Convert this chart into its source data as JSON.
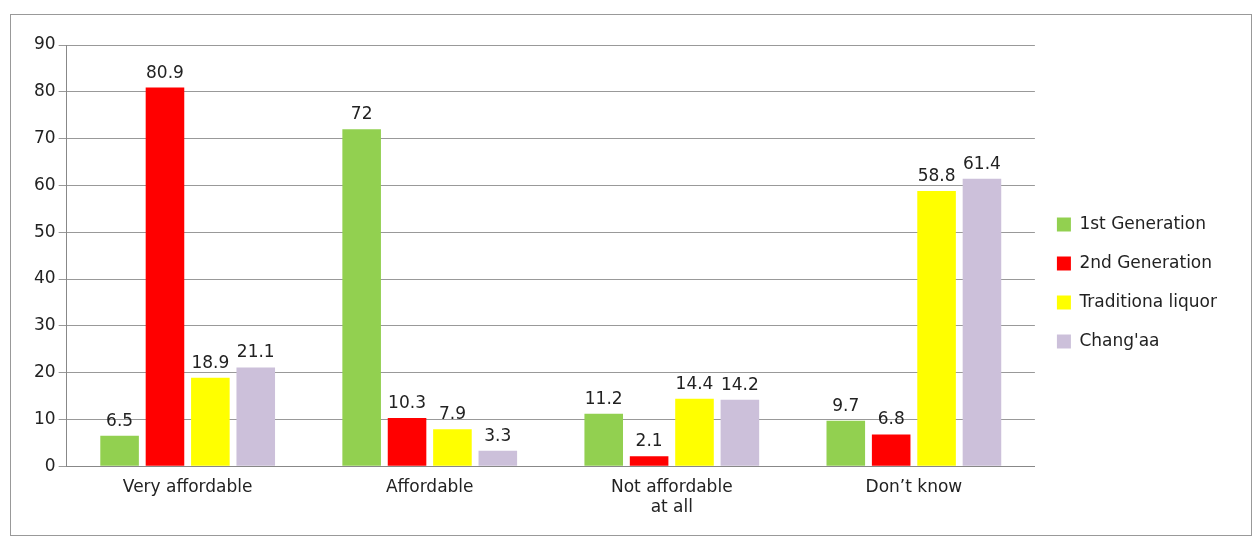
{
  "chart_data": {
    "type": "bar",
    "categories": [
      "Very affordable",
      "Affordable",
      "Not affordable at all",
      "Don’t know"
    ],
    "series": [
      {
        "name": "1st Generation",
        "color": "#92d050",
        "values": [
          6.5,
          72,
          11.2,
          9.7
        ]
      },
      {
        "name": "2nd Generation",
        "color": "#ff0000",
        "values": [
          80.9,
          10.3,
          2.1,
          6.8
        ]
      },
      {
        "name": "Traditiona liquor",
        "color": "#ffff00",
        "values": [
          18.9,
          7.9,
          14.4,
          58.8
        ]
      },
      {
        "name": "Chang'aa",
        "color": "#ccc0da",
        "values": [
          21.1,
          3.3,
          14.2,
          61.4
        ]
      }
    ],
    "ylim": [
      0,
      90
    ],
    "yticks": [
      0,
      10,
      20,
      30,
      40,
      50,
      60,
      70,
      80,
      90
    ],
    "grid": "y",
    "legend": "right",
    "data_labels": true
  }
}
